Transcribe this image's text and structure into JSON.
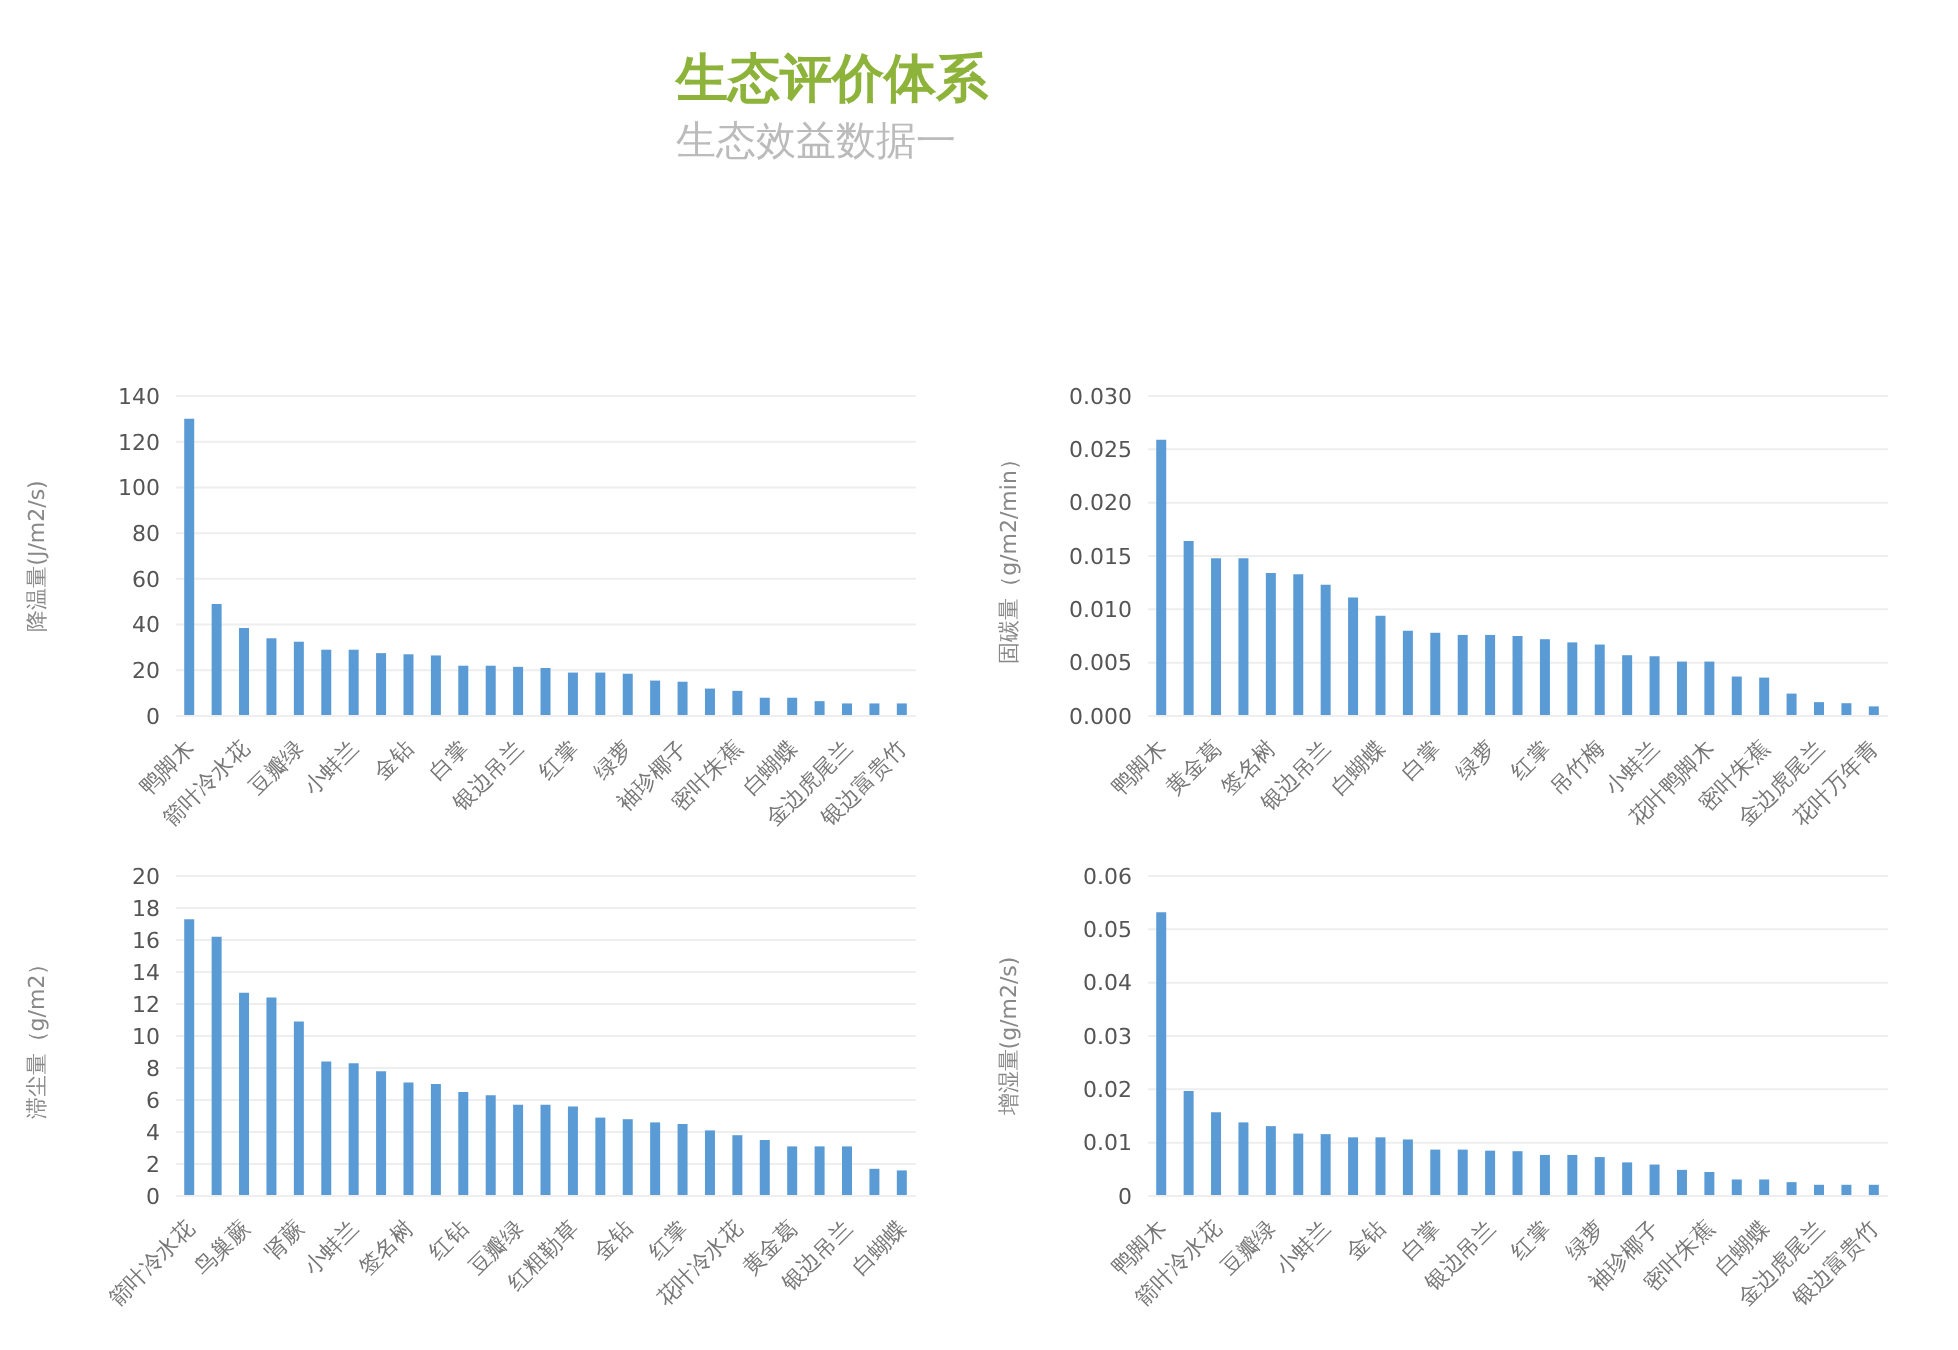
{
  "chart_data": [
    {
      "type": "bar",
      "title": "生态评价体系",
      "subtitle": "生态效益数据一",
      "ylabel": "降温量(J/m2/s)",
      "categories": [
        "鸭脚木",
        null,
        "箭叶冷水花",
        null,
        "豆瓣绿",
        null,
        "小蚌兰",
        null,
        "金钻",
        null,
        "白掌",
        null,
        "银边吊兰",
        null,
        "红掌",
        null,
        "绿萝",
        null,
        "袖珍椰子",
        null,
        "密叶朱蕉",
        null,
        "白蝴蝶",
        null,
        "金边虎尾兰",
        null,
        "银边富贵竹"
      ],
      "values": [
        130,
        49,
        38.5,
        34,
        32.5,
        29,
        29,
        27.5,
        27,
        26.5,
        22,
        22,
        21.5,
        21,
        19,
        19,
        18.5,
        15.5,
        15,
        12,
        11,
        8,
        8,
        6.5,
        5.5,
        5.5,
        5.5
      ],
      "color": "#5b9bd5",
      "ylim": [
        0,
        140
      ],
      "yticks": [
        0,
        20,
        40,
        60,
        80,
        100,
        120,
        140
      ],
      "grid": "y"
    },
    {
      "type": "bar",
      "ylabel": "固碳量（g/m2/min）",
      "categories": [
        "鸭脚木",
        null,
        "黄金葛",
        null,
        "签名树",
        null,
        "银边吊兰",
        null,
        "白蝴蝶",
        null,
        "白掌",
        null,
        "绿萝",
        null,
        "红掌",
        null,
        "吊竹梅",
        null,
        "小蚌兰",
        null,
        "花叶鸭脚木",
        null,
        "密叶朱蕉",
        null,
        "金边虎尾兰",
        null,
        "花叶万年青"
      ],
      "values": [
        0.0259,
        0.0164,
        0.0148,
        0.0148,
        0.0134,
        0.0133,
        0.0123,
        0.0111,
        0.0094,
        0.008,
        0.0078,
        0.0076,
        0.0076,
        0.0075,
        0.0072,
        0.0069,
        0.0067,
        0.0057,
        0.0056,
        0.0051,
        0.0051,
        0.0037,
        0.0036,
        0.0021,
        0.0013,
        0.0012,
        0.0009
      ],
      "color": "#5b9bd5",
      "ylim": [
        0,
        0.03
      ],
      "yticks": [
        {
          "value": 0,
          "label": "0.000"
        },
        {
          "value": 0.005,
          "label": "0.005"
        },
        {
          "value": 0.01,
          "label": "0.010"
        },
        {
          "value": 0.015,
          "label": "0.015"
        },
        {
          "value": 0.02,
          "label": "0.020"
        },
        {
          "value": 0.025,
          "label": "0.025"
        },
        {
          "value": 0.03,
          "label": "0.030"
        }
      ],
      "grid": "y"
    },
    {
      "type": "bar",
      "ylabel": "滞尘量（g/m2）",
      "categories": [
        "箭叶冷水花",
        null,
        "鸟巢蕨",
        null,
        "肾蕨",
        null,
        "小蚌兰",
        null,
        "签名树",
        null,
        "红钻",
        null,
        "豆瓣绿",
        null,
        "红粗勒草",
        null,
        "金钻",
        null,
        "红掌",
        null,
        "花叶冷水花",
        null,
        "黄金葛",
        null,
        "银边吊兰",
        null,
        "白蝴蝶"
      ],
      "values": [
        17.3,
        16.2,
        12.7,
        12.4,
        10.9,
        8.4,
        8.3,
        7.8,
        7.1,
        7,
        6.5,
        6.3,
        5.7,
        5.7,
        5.6,
        4.9,
        4.8,
        4.6,
        4.5,
        4.1,
        3.8,
        3.5,
        3.1,
        3.1,
        3.1,
        1.7,
        1.6
      ],
      "color": "#5b9bd5",
      "ylim": [
        0,
        20
      ],
      "yticks": [
        0,
        2,
        4,
        6,
        8,
        10,
        12,
        14,
        16,
        18,
        20
      ],
      "grid": "y"
    },
    {
      "type": "bar",
      "ylabel": "增湿量(g/m2/s)",
      "categories": [
        "鸭脚木",
        null,
        "箭叶冷水花",
        null,
        "豆瓣绿",
        null,
        "小蚌兰",
        null,
        "金钻",
        null,
        "白掌",
        null,
        "银边吊兰",
        null,
        "红掌",
        null,
        "绿萝",
        null,
        "袖珍椰子",
        null,
        "密叶朱蕉",
        null,
        "白蝴蝶",
        null,
        "金边虎尾兰",
        null,
        "银边富贵竹"
      ],
      "values": [
        0.0532,
        0.0197,
        0.0157,
        0.0138,
        0.0131,
        0.0117,
        0.0116,
        0.011,
        0.011,
        0.0106,
        0.0087,
        0.0087,
        0.0085,
        0.0084,
        0.0077,
        0.0077,
        0.0073,
        0.0063,
        0.0059,
        0.0049,
        0.0045,
        0.0031,
        0.0031,
        0.0026,
        0.0021,
        0.0021,
        0.0021
      ],
      "color": "#5b9bd5",
      "ylim": [
        0,
        0.06
      ],
      "yticks": [
        0,
        0.01,
        0.02,
        0.03,
        0.04,
        0.05,
        0.06
      ],
      "grid": "y"
    }
  ]
}
